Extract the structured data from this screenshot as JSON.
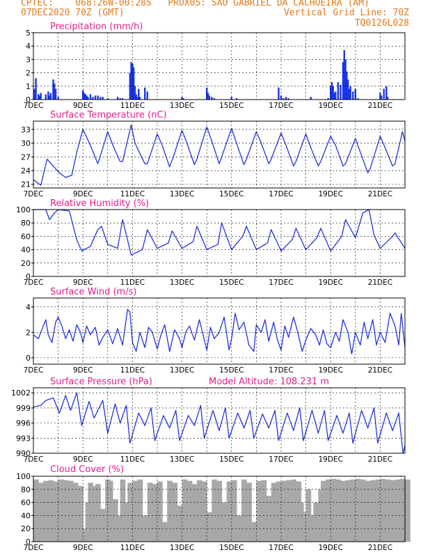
{
  "header": {
    "line1": "CPTEC:    068:26W-00:28S   PROX05: SAO GABRIEL DA CACHOEIRA (AM)",
    "line2_left": "07DEC2020 70Z (GMT)",
    "line2_right": "Vertical Grid Line: 70Z",
    "line3_right": "TQ0126L028"
  },
  "colors": {
    "header_orange": "#e07a1a",
    "title_magenta": "#e0208a",
    "series_blue": "#2233dd",
    "bar_blue": "#1a35e8",
    "cloud_gray": "#a8a8a8",
    "grid": "#000000"
  },
  "x_axis": {
    "range_days": [
      7,
      22
    ],
    "tick_labels": [
      "7DEC",
      "9DEC",
      "11DEC",
      "13DEC",
      "15DEC",
      "17DEC",
      "19DEC",
      "21DEC"
    ],
    "tick_days": [
      7,
      9,
      11,
      13,
      15,
      17,
      19,
      21
    ]
  },
  "panels": {
    "precip": {
      "title": "Precipitation (mm/h)"
    },
    "temp": {
      "title": "Surface Temperature (nC)"
    },
    "rh": {
      "title": "Relative Humidity (%)"
    },
    "wind": {
      "title": "Surface Wind (m/s)"
    },
    "pres": {
      "title": "Surface Pressure (hPa)",
      "extra": "Model Altitude: 108.231 m"
    },
    "cloud": {
      "title": "Cloud Cover (%)"
    }
  },
  "chart_data": [
    {
      "type": "bar",
      "title": "Precipitation (mm/h)",
      "ylim": [
        0,
        5
      ],
      "yticks": [
        0,
        1,
        2,
        3,
        4,
        5
      ],
      "x": [
        7.05,
        7.1,
        7.2,
        7.25,
        7.3,
        7.5,
        7.6,
        7.65,
        7.7,
        7.8,
        7.85,
        7.9,
        8.0,
        9.0,
        9.05,
        9.1,
        9.15,
        9.2,
        9.3,
        9.4,
        9.5,
        9.6,
        9.7,
        9.8,
        10.0,
        10.4,
        10.5,
        10.6,
        10.9,
        10.95,
        11.0,
        11.05,
        11.1,
        11.15,
        11.2,
        11.25,
        11.3,
        11.5,
        11.6,
        13.0,
        13.05,
        14.0,
        14.05,
        14.1,
        14.2,
        14.3,
        15.0,
        15.2,
        16.9,
        17.0,
        17.1,
        17.2,
        17.3,
        18.2,
        18.9,
        19.0,
        19.05,
        19.1,
        19.15,
        19.2,
        19.3,
        19.4,
        19.5,
        19.55,
        19.6,
        19.65,
        19.7,
        19.75,
        19.8,
        19.9,
        20.0,
        20.1,
        21.0,
        21.05,
        21.15,
        21.25,
        21.3
      ],
      "values": [
        0.8,
        1.6,
        0.4,
        0.3,
        0.5,
        0.4,
        0.6,
        0.3,
        0.5,
        1.5,
        1.2,
        0.8,
        0.2,
        0.7,
        0.5,
        0.4,
        0.3,
        0.2,
        0.4,
        0.2,
        0.3,
        0.3,
        0.2,
        0.2,
        0.1,
        0.2,
        0.1,
        0.1,
        2.0,
        2.8,
        2.7,
        2.4,
        1.0,
        0.4,
        0.2,
        0.8,
        0.2,
        0.9,
        0.6,
        0.2,
        0.1,
        0.9,
        0.5,
        0.3,
        0.2,
        0.1,
        0.2,
        0.1,
        0.9,
        0.3,
        0.1,
        0.2,
        0.1,
        0.2,
        0.1,
        1.0,
        1.3,
        1.0,
        0.5,
        0.6,
        1.3,
        1.1,
        2.8,
        3.7,
        3.0,
        2.1,
        1.5,
        0.8,
        1.0,
        0.6,
        0.8,
        0.1,
        0.5,
        0.3,
        0.8,
        1.0,
        0.2
      ]
    },
    {
      "type": "line",
      "title": "Surface Temperature (nC)",
      "ylim": [
        20.2,
        34.8
      ],
      "yticks": [
        21,
        24,
        27,
        30,
        33
      ],
      "series": [
        {
          "x": [
            7.0,
            7.3,
            7.55,
            7.8,
            8.05,
            8.3,
            8.55,
            8.75,
            9.0,
            9.3,
            9.6,
            9.75,
            10.0,
            10.25,
            10.5,
            10.6,
            10.95,
            11.1,
            11.5,
            11.6,
            12.0,
            12.2,
            12.5,
            12.65,
            13.0,
            13.2,
            13.5,
            13.6,
            14.0,
            14.2,
            14.5,
            14.6,
            15.0,
            15.2,
            15.5,
            15.6,
            16.0,
            16.2,
            16.5,
            16.6,
            17.0,
            17.2,
            17.5,
            17.6,
            18.0,
            18.2,
            18.5,
            18.6,
            19.0,
            19.2,
            19.5,
            19.6,
            20.0,
            20.2,
            20.5,
            20.6,
            21.0,
            21.2,
            21.5,
            21.6,
            21.9,
            22.0
          ],
          "values": [
            22.0,
            20.8,
            26.5,
            25.0,
            23.5,
            22.5,
            23.0,
            28.0,
            33.0,
            29.5,
            25.5,
            28.0,
            32.5,
            29.0,
            26.0,
            26.0,
            34.0,
            30.0,
            25.5,
            25.5,
            32.0,
            29.5,
            24.8,
            27.0,
            32.8,
            30.0,
            25.3,
            26.5,
            33.5,
            30.5,
            25.5,
            27.0,
            33.2,
            30.0,
            25.3,
            26.5,
            32.5,
            30.0,
            25.5,
            26.5,
            32.2,
            29.5,
            25.0,
            26.0,
            32.0,
            29.0,
            25.0,
            26.0,
            31.5,
            29.5,
            25.0,
            25.5,
            31.0,
            28.0,
            23.5,
            24.5,
            31.5,
            29.0,
            25.0,
            25.5,
            32.5,
            30.5
          ]
        }
      ]
    },
    {
      "type": "line",
      "title": "Relative Humidity (%)",
      "ylim": [
        0,
        100
      ],
      "yticks": [
        0,
        20,
        40,
        60,
        80,
        100
      ],
      "series": [
        {
          "x": [
            7.0,
            7.5,
            7.65,
            7.85,
            8.0,
            8.45,
            8.75,
            8.95,
            9.3,
            9.6,
            9.75,
            10.0,
            10.4,
            10.6,
            10.95,
            11.4,
            11.6,
            12.0,
            12.45,
            12.6,
            13.0,
            13.45,
            13.6,
            14.0,
            14.45,
            14.6,
            15.0,
            15.45,
            15.6,
            16.0,
            16.45,
            16.6,
            17.0,
            17.45,
            17.6,
            18.0,
            18.45,
            18.6,
            19.0,
            19.45,
            19.6,
            20.0,
            20.3,
            20.55,
            20.75,
            21.0,
            21.45,
            21.6,
            22.0
          ],
          "values": [
            100,
            100,
            85,
            95,
            100,
            98,
            55,
            38,
            45,
            70,
            75,
            48,
            42,
            85,
            32,
            40,
            70,
            42,
            50,
            68,
            42,
            52,
            75,
            40,
            48,
            80,
            40,
            60,
            75,
            40,
            50,
            70,
            38,
            55,
            72,
            40,
            58,
            72,
            38,
            60,
            85,
            58,
            95,
            100,
            62,
            42,
            58,
            65,
            42
          ]
        }
      ]
    },
    {
      "type": "line",
      "title": "Surface Wind (m/s)",
      "ylim": [
        -0.5,
        4.7
      ],
      "yticks": [
        0,
        2,
        4
      ],
      "series": [
        {
          "x": [
            7.0,
            7.2,
            7.4,
            7.5,
            7.6,
            7.75,
            7.9,
            8.0,
            8.15,
            8.3,
            8.45,
            8.6,
            8.75,
            8.9,
            9.0,
            9.15,
            9.3,
            9.5,
            9.65,
            9.8,
            10.0,
            10.2,
            10.4,
            10.6,
            10.8,
            10.9,
            11.0,
            11.15,
            11.3,
            11.5,
            11.65,
            11.8,
            12.0,
            12.15,
            12.3,
            12.5,
            12.7,
            12.9,
            13.0,
            13.15,
            13.3,
            13.5,
            13.7,
            13.85,
            14.0,
            14.15,
            14.3,
            14.5,
            14.7,
            14.9,
            15.0,
            15.15,
            15.3,
            15.5,
            15.7,
            15.9,
            16.0,
            16.2,
            16.35,
            16.5,
            16.7,
            16.85,
            17.0,
            17.15,
            17.3,
            17.5,
            17.65,
            17.85,
            18.0,
            18.2,
            18.4,
            18.55,
            18.7,
            18.85,
            19.0,
            19.2,
            19.35,
            19.5,
            19.7,
            19.85,
            20.0,
            20.2,
            20.35,
            20.5,
            20.7,
            20.85,
            21.0,
            21.2,
            21.4,
            21.6,
            21.75,
            21.85,
            22.0
          ],
          "values": [
            1.8,
            1.5,
            2.5,
            3.0,
            1.8,
            1.2,
            2.8,
            3.2,
            2.5,
            1.5,
            2.2,
            1.3,
            2.6,
            2.0,
            1.2,
            2.5,
            1.8,
            2.4,
            1.0,
            1.6,
            2.2,
            1.1,
            2.3,
            1.0,
            3.8,
            3.6,
            1.2,
            0.5,
            2.0,
            0.8,
            2.4,
            2.0,
            0.7,
            1.8,
            2.6,
            0.5,
            2.2,
            1.5,
            0.8,
            2.0,
            2.5,
            1.4,
            3.0,
            1.8,
            0.6,
            2.4,
            1.5,
            2.0,
            3.2,
            0.6,
            1.5,
            3.5,
            2.2,
            2.8,
            1.0,
            0.5,
            2.6,
            2.0,
            3.0,
            1.3,
            2.8,
            1.4,
            0.6,
            2.5,
            1.6,
            3.2,
            2.2,
            0.5,
            1.4,
            2.3,
            1.8,
            1.0,
            2.2,
            1.1,
            0.8,
            2.0,
            1.3,
            3.0,
            2.0,
            0.3,
            2.0,
            1.0,
            2.8,
            1.5,
            3.0,
            1.0,
            2.0,
            1.2,
            3.5,
            2.5,
            1.0,
            3.5,
            0.8
          ]
        }
      ]
    },
    {
      "type": "line",
      "title": "Surface Pressure (hPa)",
      "ylim": [
        990,
        1003
      ],
      "yticks": [
        990,
        993,
        996,
        999,
        1002
      ],
      "series": [
        {
          "x": [
            7.0,
            7.3,
            7.5,
            7.8,
            8.05,
            8.3,
            8.5,
            8.75,
            8.95,
            9.25,
            9.45,
            9.8,
            10.0,
            10.3,
            10.5,
            10.75,
            10.9,
            11.25,
            11.5,
            11.75,
            11.9,
            12.25,
            12.5,
            12.75,
            12.9,
            13.25,
            13.5,
            13.75,
            13.9,
            14.25,
            14.5,
            14.75,
            14.9,
            15.25,
            15.5,
            15.75,
            15.9,
            16.25,
            16.5,
            16.75,
            16.9,
            17.25,
            17.5,
            17.75,
            17.9,
            18.25,
            18.5,
            18.75,
            18.9,
            19.25,
            19.5,
            19.75,
            19.9,
            20.25,
            20.5,
            20.75,
            20.9,
            21.25,
            21.5,
            21.75,
            21.92,
            22.0
          ],
          "values": [
            999.2,
            999.5,
            1000.5,
            1001.0,
            998.0,
            1001.5,
            998.5,
            1002.0,
            995.5,
            1000.3,
            997.0,
            1000.5,
            994.0,
            999.8,
            996.0,
            999.5,
            992.0,
            998.0,
            995.5,
            999.0,
            992.5,
            997.5,
            995.0,
            998.5,
            992.5,
            997.5,
            995.5,
            999.5,
            993.0,
            998.5,
            994.5,
            999.0,
            993.0,
            998.0,
            995.0,
            998.5,
            993.0,
            997.8,
            995.0,
            998.5,
            992.5,
            998.0,
            994.5,
            999.0,
            992.5,
            998.5,
            994.0,
            998.5,
            992.5,
            997.5,
            994.0,
            998.0,
            992.0,
            998.5,
            995.0,
            999.0,
            992.0,
            998.0,
            994.5,
            998.0,
            990.0,
            991.5
          ]
        }
      ]
    },
    {
      "type": "area",
      "title": "Cloud Cover (%)",
      "ylim": [
        0,
        100
      ],
      "yticks": [
        0,
        20,
        40,
        60,
        80,
        100
      ],
      "series": [
        {
          "x": [
            7.0,
            7.2,
            7.4,
            7.6,
            7.8,
            8.0,
            8.2,
            8.4,
            8.6,
            8.7,
            8.8,
            8.9,
            9.0,
            9.1,
            9.2,
            9.3,
            9.5,
            9.7,
            9.8,
            9.9,
            10.0,
            10.2,
            10.3,
            10.4,
            10.5,
            10.6,
            10.7,
            10.8,
            10.9,
            11.0,
            11.2,
            11.4,
            11.6,
            11.8,
            12.0,
            12.2,
            12.4,
            12.6,
            12.8,
            13.0,
            13.2,
            13.4,
            13.6,
            13.8,
            14.0,
            14.2,
            14.4,
            14.6,
            14.8,
            15.0,
            15.2,
            15.4,
            15.6,
            15.8,
            16.0,
            16.2,
            16.4,
            16.5,
            16.6,
            16.8,
            17.0,
            17.2,
            17.4,
            17.6,
            17.7,
            17.8,
            17.9,
            18.0,
            18.1,
            18.2,
            18.3,
            18.4,
            18.5,
            18.6,
            18.8,
            19.0,
            19.2,
            19.4,
            19.6,
            19.8,
            20.0,
            20.2,
            20.4,
            20.6,
            20.8,
            21.0,
            21.2,
            21.4,
            21.6,
            21.8,
            22.0
          ],
          "values": [
            95,
            90,
            93,
            94,
            92,
            95,
            94,
            93,
            90,
            40,
            85,
            20,
            15,
            60,
            90,
            85,
            88,
            50,
            20,
            95,
            93,
            65,
            40,
            30,
            95,
            20,
            60,
            90,
            85,
            93,
            95,
            40,
            90,
            88,
            92,
            30,
            93,
            90,
            55,
            95,
            93,
            88,
            94,
            92,
            45,
            95,
            93,
            60,
            92,
            94,
            40,
            95,
            90,
            30,
            93,
            94,
            70,
            40,
            90,
            92,
            93,
            94,
            95,
            92,
            60,
            25,
            45,
            80,
            40,
            30,
            60,
            25,
            80,
            93,
            95,
            96,
            95,
            93,
            94,
            95,
            96,
            95,
            93,
            94,
            95,
            96,
            95,
            94,
            95,
            96,
            95
          ]
        }
      ]
    }
  ]
}
